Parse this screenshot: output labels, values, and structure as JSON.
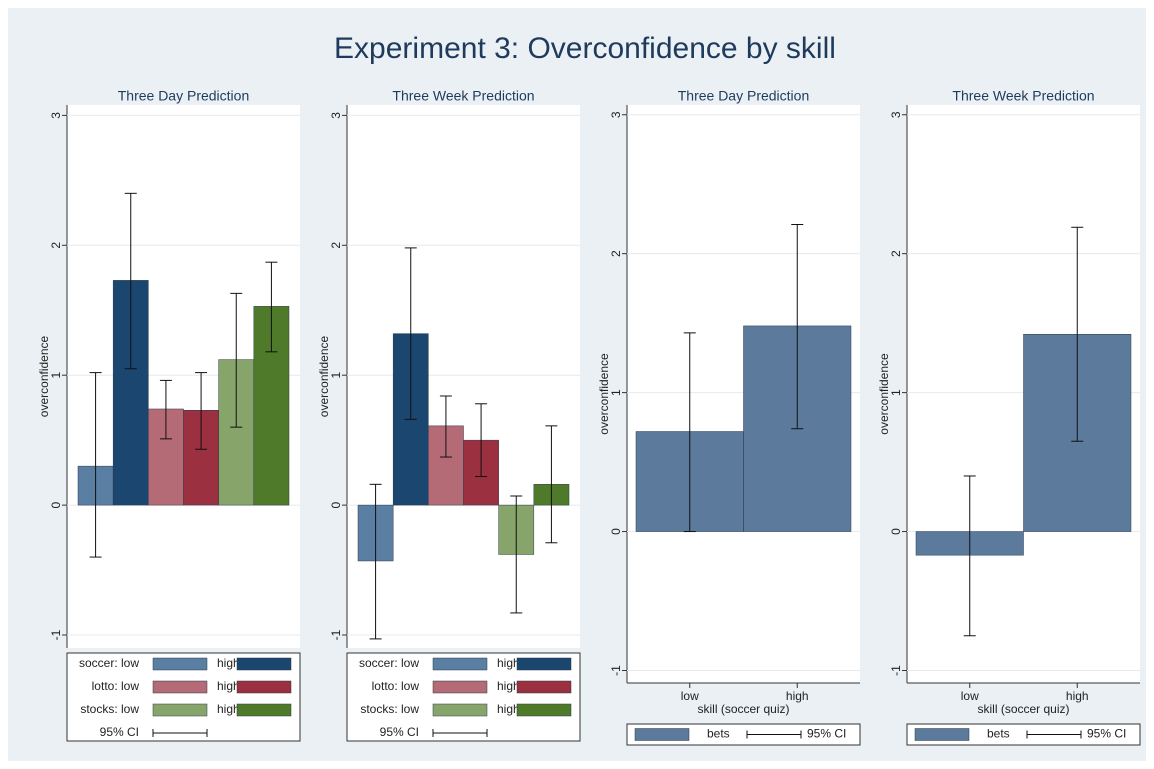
{
  "title": "Experiment 3: Overconfidence by skill",
  "chart_data": [
    {
      "type": "bar",
      "title": "Three Day Prediction",
      "ylabel": "overconfidence",
      "ylim": [
        -1.1,
        3.08
      ],
      "yticks": [
        -1,
        0,
        1,
        2,
        3
      ],
      "grid": true,
      "ci_label": "95% CI",
      "series": [
        {
          "name": "soccer: low",
          "color": "#5b7ea3",
          "values": [
            0.3
          ],
          "lower": [
            -0.4
          ],
          "upper": [
            1.02
          ]
        },
        {
          "name": "high",
          "color": "#1a4670",
          "values": [
            1.73
          ],
          "lower": [
            1.05
          ],
          "upper": [
            2.4
          ]
        },
        {
          "name": "lotto: low",
          "color": "#b56b76",
          "values": [
            0.74
          ],
          "lower": [
            0.51
          ],
          "upper": [
            0.96
          ]
        },
        {
          "name": "high",
          "color": "#9a3040",
          "values": [
            0.73
          ],
          "lower": [
            0.43
          ],
          "upper": [
            1.02
          ]
        },
        {
          "name": "stocks: low",
          "color": "#87a46b",
          "values": [
            1.12
          ],
          "lower": [
            0.6
          ],
          "upper": [
            1.63
          ]
        },
        {
          "name": "high",
          "color": "#4e7a2a",
          "values": [
            1.53
          ],
          "lower": [
            1.18
          ],
          "upper": [
            1.87
          ]
        }
      ]
    },
    {
      "type": "bar",
      "title": "Three Week Prediction",
      "ylabel": "overconfidence",
      "ylim": [
        -1.1,
        3.08
      ],
      "yticks": [
        -1,
        0,
        1,
        2,
        3
      ],
      "grid": true,
      "ci_label": "95% CI",
      "series": [
        {
          "name": "soccer: low",
          "color": "#5b7ea3",
          "values": [
            -0.43
          ],
          "lower": [
            -1.03
          ],
          "upper": [
            0.16
          ]
        },
        {
          "name": "high",
          "color": "#1a4670",
          "values": [
            1.32
          ],
          "lower": [
            0.66
          ],
          "upper": [
            1.98
          ]
        },
        {
          "name": "lotto: low",
          "color": "#b56b76",
          "values": [
            0.61
          ],
          "lower": [
            0.37
          ],
          "upper": [
            0.84
          ]
        },
        {
          "name": "high",
          "color": "#9a3040",
          "values": [
            0.5
          ],
          "lower": [
            0.22
          ],
          "upper": [
            0.78
          ]
        },
        {
          "name": "stocks: low",
          "color": "#87a46b",
          "values": [
            -0.38
          ],
          "lower": [
            -0.83
          ],
          "upper": [
            0.07
          ]
        },
        {
          "name": "high",
          "color": "#4e7a2a",
          "values": [
            0.16
          ],
          "lower": [
            -0.29
          ],
          "upper": [
            0.61
          ]
        }
      ]
    },
    {
      "type": "bar",
      "title": "Three Day Prediction",
      "ylabel": "overconfidence",
      "xlabel": "skill (soccer quiz)",
      "ylim": [
        -1.09,
        3.07
      ],
      "yticks": [
        -1,
        0,
        1,
        2,
        3
      ],
      "grid": true,
      "ci_label": "95% CI",
      "categories": [
        "low",
        "high"
      ],
      "series": [
        {
          "name": "bets",
          "color": "#5b7a9c",
          "values": [
            0.72,
            1.48
          ],
          "lower": [
            0.0,
            0.74
          ],
          "upper": [
            1.43,
            2.21
          ]
        }
      ]
    },
    {
      "type": "bar",
      "title": "Three Week Prediction",
      "ylabel": "overconfidence",
      "xlabel": "skill (soccer quiz)",
      "ylim": [
        -1.09,
        3.07
      ],
      "yticks": [
        -1,
        0,
        1,
        2,
        3
      ],
      "grid": true,
      "ci_label": "95% CI",
      "categories": [
        "low",
        "high"
      ],
      "series": [
        {
          "name": "bets",
          "color": "#5b7a9c",
          "values": [
            -0.17,
            1.42
          ],
          "lower": [
            -0.75,
            0.65
          ],
          "upper": [
            0.4,
            2.19
          ]
        }
      ]
    }
  ]
}
